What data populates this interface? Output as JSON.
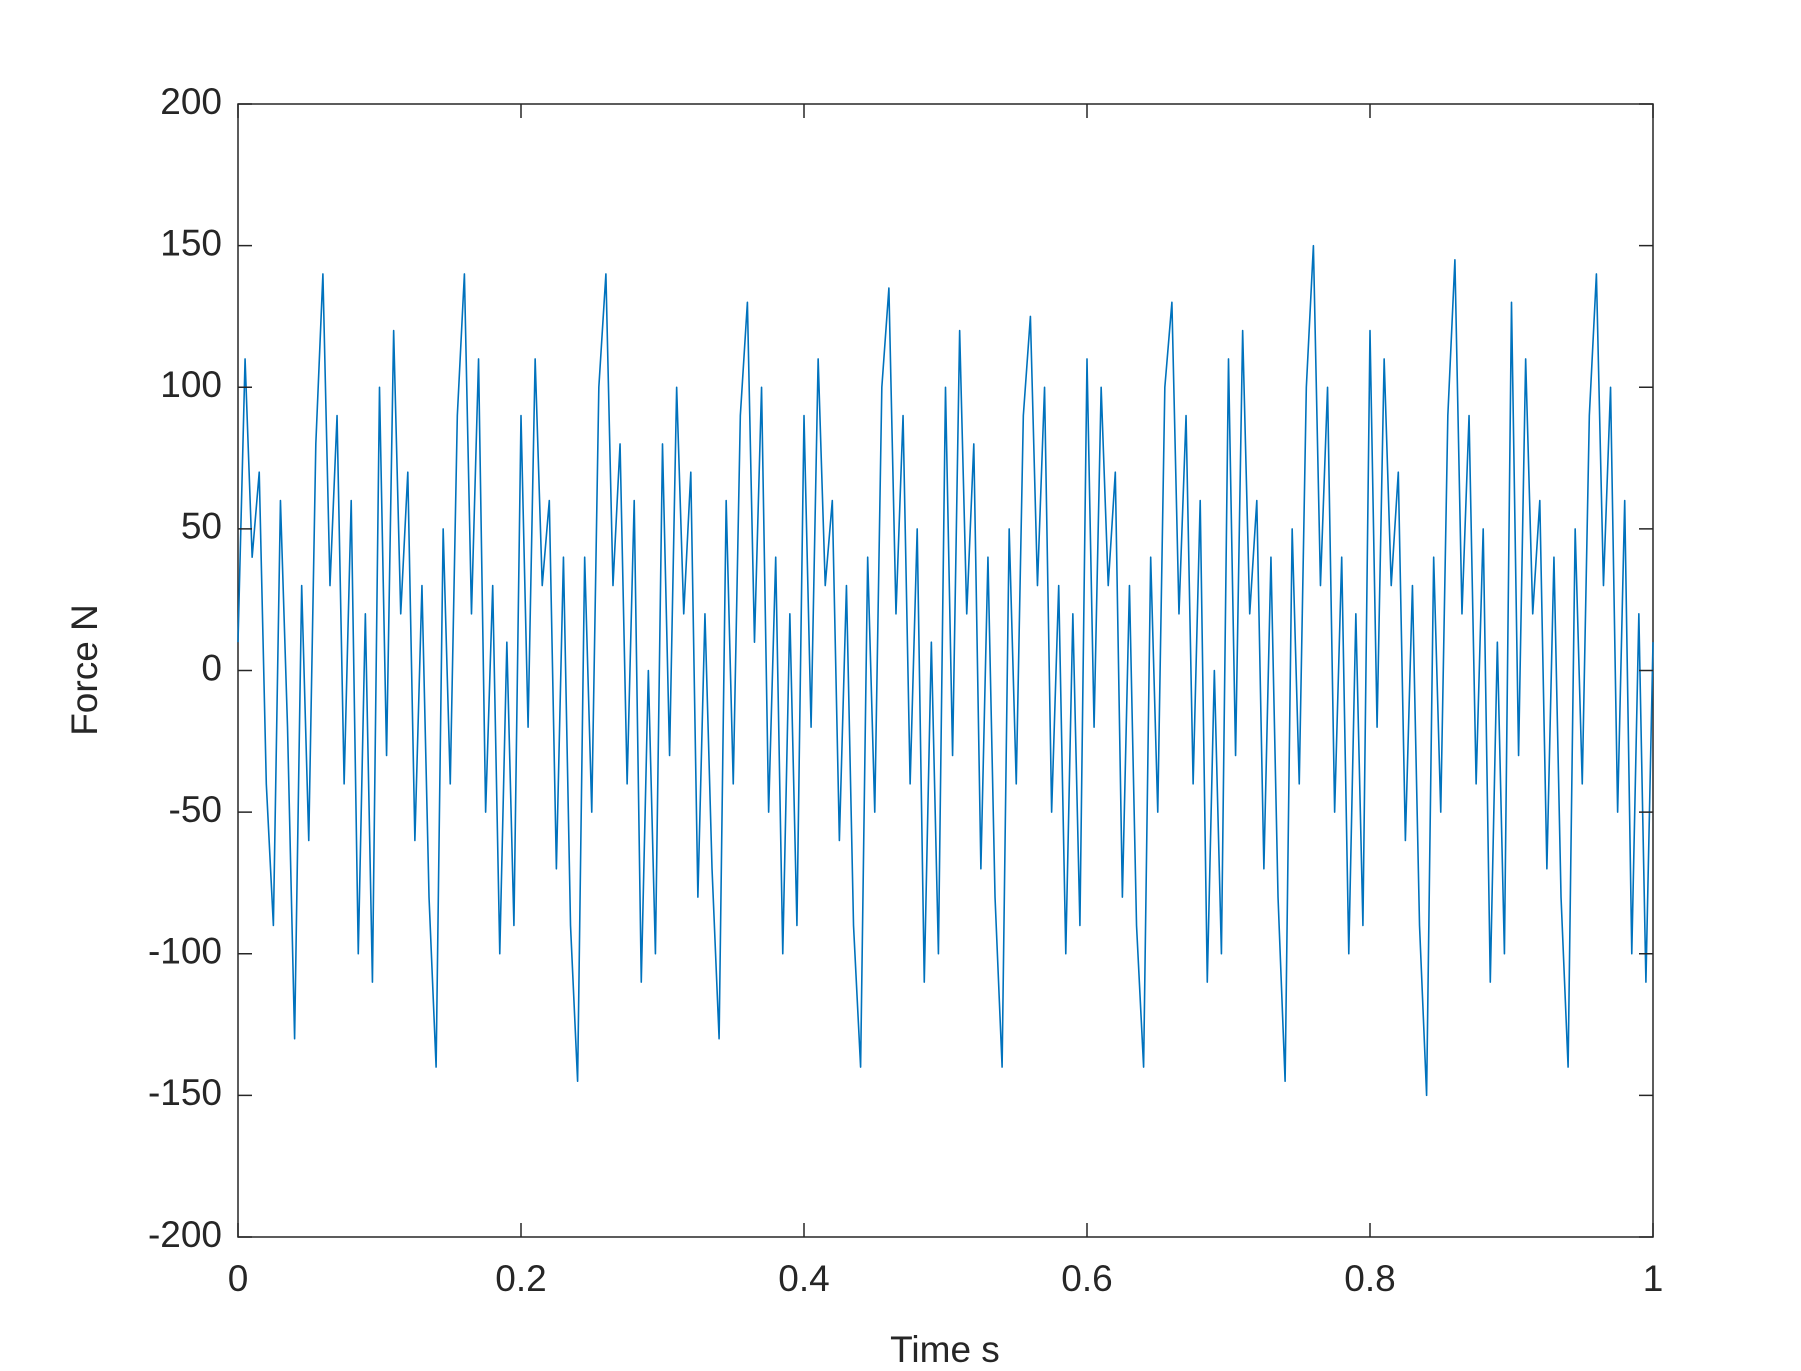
{
  "chart_data": {
    "type": "line",
    "xlabel": "Time s",
    "ylabel": "Force N",
    "color": "#0072bd",
    "xlim": [
      0,
      1
    ],
    "xticks": [
      0,
      0.2,
      0.4,
      0.6,
      0.8,
      1
    ],
    "ylim": [
      -200,
      200
    ],
    "yticks": [
      -200,
      -150,
      -100,
      -50,
      0,
      50,
      100,
      150,
      200
    ],
    "x": [
      0,
      0.005,
      0.01,
      0.015,
      0.02,
      0.025,
      0.03,
      0.035,
      0.04,
      0.045,
      0.05,
      0.055,
      0.06,
      0.065,
      0.07,
      0.075,
      0.08,
      0.085,
      0.09,
      0.095,
      0.1,
      0.105,
      0.11,
      0.115,
      0.12,
      0.125,
      0.13,
      0.135,
      0.14,
      0.145,
      0.15,
      0.155,
      0.16,
      0.165,
      0.17,
      0.175,
      0.18,
      0.185,
      0.19,
      0.195,
      0.2,
      0.205,
      0.21,
      0.215,
      0.22,
      0.225,
      0.23,
      0.235,
      0.24,
      0.245,
      0.25,
      0.255,
      0.26,
      0.265,
      0.27,
      0.275,
      0.28,
      0.285,
      0.29,
      0.295,
      0.3,
      0.305,
      0.31,
      0.315,
      0.32,
      0.325,
      0.33,
      0.335,
      0.34,
      0.345,
      0.35,
      0.355,
      0.36,
      0.365,
      0.37,
      0.375,
      0.38,
      0.385,
      0.39,
      0.395,
      0.4,
      0.405,
      0.41,
      0.415,
      0.42,
      0.425,
      0.43,
      0.435,
      0.44,
      0.445,
      0.45,
      0.455,
      0.46,
      0.465,
      0.47,
      0.475,
      0.48,
      0.485,
      0.49,
      0.495,
      0.5,
      0.505,
      0.51,
      0.515,
      0.52,
      0.525,
      0.53,
      0.535,
      0.54,
      0.545,
      0.55,
      0.555,
      0.56,
      0.565,
      0.57,
      0.575,
      0.58,
      0.585,
      0.59,
      0.595,
      0.6,
      0.605,
      0.61,
      0.615,
      0.62,
      0.625,
      0.63,
      0.635,
      0.64,
      0.645,
      0.65,
      0.655,
      0.66,
      0.665,
      0.67,
      0.675,
      0.68,
      0.685,
      0.69,
      0.695,
      0.7,
      0.705,
      0.71,
      0.715,
      0.72,
      0.725,
      0.73,
      0.735,
      0.74,
      0.745,
      0.75,
      0.755,
      0.76,
      0.765,
      0.77,
      0.775,
      0.78,
      0.785,
      0.79,
      0.795,
      0.8,
      0.805,
      0.81,
      0.815,
      0.82,
      0.825,
      0.83,
      0.835,
      0.84,
      0.845,
      0.85,
      0.855,
      0.86,
      0.865,
      0.87,
      0.875,
      0.88,
      0.885,
      0.89,
      0.895,
      0.9,
      0.905,
      0.91,
      0.915,
      0.92,
      0.925,
      0.93,
      0.935,
      0.94,
      0.945,
      0.95,
      0.955,
      0.96,
      0.965,
      0.97,
      0.975,
      0.98,
      0.985,
      0.99,
      0.995,
      1
    ],
    "values": [
      10,
      110,
      40,
      70,
      -40,
      -90,
      60,
      -20,
      -130,
      30,
      -60,
      80,
      140,
      30,
      90,
      -40,
      60,
      -100,
      20,
      -110,
      100,
      -30,
      120,
      20,
      70,
      -60,
      30,
      -80,
      -140,
      50,
      -40,
      90,
      140,
      20,
      110,
      -50,
      30,
      -100,
      10,
      -90,
      90,
      -20,
      110,
      30,
      60,
      -70,
      40,
      -90,
      -145,
      40,
      -50,
      100,
      140,
      30,
      80,
      -40,
      60,
      -110,
      0,
      -100,
      80,
      -30,
      100,
      20,
      70,
      -80,
      20,
      -70,
      -130,
      60,
      -40,
      90,
      130,
      10,
      100,
      -50,
      40,
      -100,
      20,
      -90,
      90,
      -20,
      110,
      30,
      60,
      -60,
      30,
      -90,
      -140,
      40,
      -50,
      100,
      135,
      20,
      90,
      -40,
      50,
      -110,
      10,
      -100,
      100,
      -30,
      120,
      20,
      80,
      -70,
      40,
      -80,
      -140,
      50,
      -40,
      90,
      125,
      30,
      100,
      -50,
      30,
      -100,
      20,
      -90,
      110,
      -20,
      100,
      30,
      70,
      -80,
      30,
      -90,
      -140,
      40,
      -50,
      100,
      130,
      20,
      90,
      -40,
      60,
      -110,
      0,
      -100,
      110,
      -30,
      120,
      20,
      60,
      -70,
      40,
      -80,
      -145,
      50,
      -40,
      100,
      150,
      30,
      100,
      -50,
      40,
      -100,
      20,
      -90,
      120,
      -20,
      110,
      30,
      70,
      -60,
      30,
      -90,
      -150,
      40,
      -50,
      90,
      145,
      20,
      90,
      -40,
      50,
      -110,
      10,
      -100,
      130,
      -30,
      110,
      20,
      60,
      -70,
      40,
      -80,
      -140,
      50,
      -40,
      90,
      140,
      30,
      100,
      -50,
      60,
      -100,
      20,
      -110,
      10
    ]
  }
}
